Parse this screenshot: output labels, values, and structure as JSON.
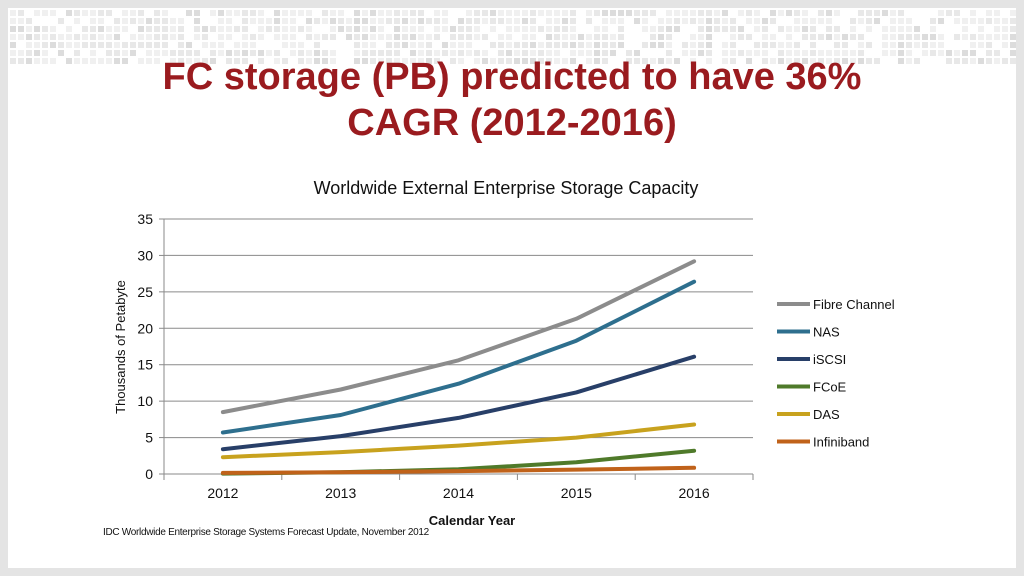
{
  "slide": {
    "title_line1": "FC storage (PB) predicted to have 36%",
    "title_line2": "CAGR (2012-2016)",
    "source": "IDC Worldwide Enterprise Storage Systems Forecast Update, November 2012",
    "title_color": "#9a1b1f"
  },
  "chart_data": {
    "type": "line",
    "title": "Worldwide External Enterprise Storage Capacity",
    "xlabel": "Calendar Year",
    "ylabel": "Thousands of Petabyte",
    "x": [
      "2012",
      "2013",
      "2014",
      "2015",
      "2016"
    ],
    "ylim": [
      0,
      35
    ],
    "yticks": [
      0,
      5,
      10,
      15,
      20,
      25,
      30,
      35
    ],
    "grid": true,
    "legend_position": "right",
    "series": [
      {
        "name": "Fibre Channel",
        "color": "#8c8c8c",
        "values": [
          8.5,
          11.6,
          15.6,
          21.3,
          29.2
        ]
      },
      {
        "name": "NAS",
        "color": "#2e6f8e",
        "values": [
          5.7,
          8.1,
          12.4,
          18.3,
          26.4
        ]
      },
      {
        "name": "iSCSI",
        "color": "#283f68",
        "values": [
          3.4,
          5.2,
          7.7,
          11.2,
          16.1
        ]
      },
      {
        "name": "FCoE",
        "color": "#4f7a2a",
        "values": [
          0.05,
          0.25,
          0.65,
          1.6,
          3.2
        ]
      },
      {
        "name": "DAS",
        "color": "#c8a21e",
        "values": [
          2.3,
          3.0,
          3.9,
          5.0,
          6.8
        ]
      },
      {
        "name": "Infiniband",
        "color": "#c0621a",
        "values": [
          0.15,
          0.25,
          0.4,
          0.6,
          0.85
        ]
      }
    ]
  }
}
